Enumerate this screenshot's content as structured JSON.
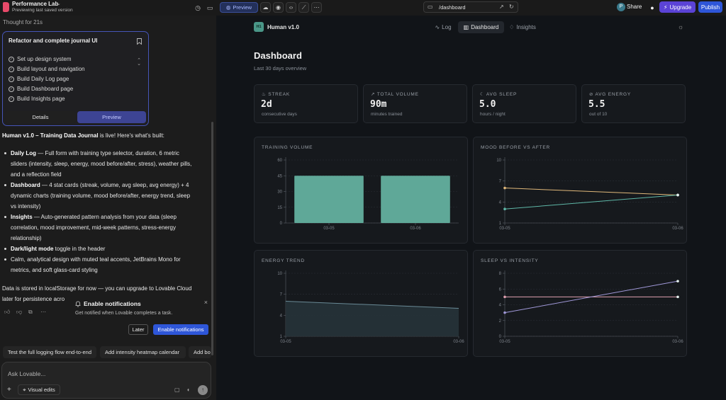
{
  "topbar": {
    "project_name": "Performance Lab",
    "project_status": "Previewing last saved version",
    "preview_label": "Preview",
    "url_path": "/dashboard",
    "share_avatar": "P",
    "share_label": "Share",
    "upgrade_label": "Upgrade",
    "publish_label": "Publish",
    "accent_upgrade": "#5b43d6",
    "accent_publish": "#2e56d8"
  },
  "chat": {
    "thought": "Thought for 21s",
    "plan": {
      "title": "Refactor and complete journal UI",
      "items": [
        "Set up design system",
        "Build layout and navigation",
        "Build Daily Log page",
        "Build Dashboard page",
        "Build Insights page"
      ],
      "details_tab": "Details",
      "preview_tab": "Preview"
    },
    "intro_bold": "Human v1.0 – Training Data Journal",
    "intro_rest": " is live! Here's what's built:",
    "bullets": [
      {
        "bold": "Daily Log",
        "line1": " — Full form with training type selector, duration, 6 metric",
        "line2": "sliders (intensity, sleep, energy, mood before/after, stress), weather pills,",
        "line3": "and a reflection field"
      },
      {
        "bold": "Dashboard",
        "line1": " — 4 stat cards (streak, volume, avg sleep, avg energy) + 4",
        "line2": "dynamic charts (training volume, mood before/after, energy trend, sleep",
        "line3": "vs intensity)"
      },
      {
        "bold": "Insights",
        "line1": " — Auto-generated pattern analysis from your data (sleep",
        "line2": "correlation, mood improvement, mid-week patterns, stress-energy",
        "line3": "relationship)"
      },
      {
        "bold": "Dark/light mode",
        "line1": " toggle in the header"
      },
      {
        "bold": "",
        "line1": "Calm, analytical design with muted teal accents, JetBrains Mono for",
        "line2": "metrics, and soft glass-card styling"
      }
    ],
    "footer_line1": "Data is stored in localStorage for now — you can upgrade to Lovable Cloud",
    "footer_line2": "later for persistence acro",
    "notification": {
      "title": "Enable notifications",
      "description": "Get notified when Lovable completes a task.",
      "later_label": "Later",
      "enable_label": "Enable notifications"
    },
    "suggestions": [
      "Test the full logging flow end-to-end",
      "Add intensity heatmap calendar",
      "Add bo"
    ],
    "composer_placeholder": "Ask Lovable...",
    "visual_edits_label": "Visual edits"
  },
  "app": {
    "logo_text": "H1",
    "name": "Human v1.0",
    "nav": [
      "Log",
      "Dashboard",
      "Insights"
    ],
    "title": "Dashboard",
    "subtitle": "Last 30 days overview",
    "stats": [
      {
        "label": "STREAK",
        "value": "2d",
        "unit": "consecutive days",
        "icon": "flame-icon"
      },
      {
        "label": "TOTAL VOLUME",
        "value": "90m",
        "unit": "minutes trained",
        "icon": "trend-icon"
      },
      {
        "label": "AVG SLEEP",
        "value": "5.0",
        "unit": "hours / night",
        "icon": "moon-icon"
      },
      {
        "label": "AVG ENERGY",
        "value": "5.5",
        "unit": "out of 10",
        "icon": "bolt-icon"
      }
    ],
    "chart_titles": [
      "TRAINING VOLUME",
      "MOOD BEFORE VS AFTER",
      "ENERGY TREND",
      "SLEEP VS INTENSITY"
    ]
  },
  "chart_data": [
    {
      "type": "bar",
      "title": "TRAINING VOLUME",
      "categories": [
        "03-05",
        "03-06"
      ],
      "values": [
        45,
        45
      ],
      "yticks": [
        "0",
        "15",
        "30",
        "45",
        "60"
      ],
      "ylim": [
        0,
        60
      ],
      "color": "#5fa898"
    },
    {
      "type": "line",
      "title": "MOOD BEFORE VS AFTER",
      "x": [
        "03-05",
        "03-06"
      ],
      "series": [
        {
          "values": [
            6,
            5
          ],
          "color": "#e0b87a"
        },
        {
          "values": [
            3,
            5
          ],
          "color": "#5fb8a8"
        }
      ],
      "yticks": [
        "1",
        "4",
        "7",
        "10"
      ],
      "ylim": [
        1,
        10
      ]
    },
    {
      "type": "area",
      "title": "ENERGY TREND",
      "x": [
        "03-05",
        "03-06"
      ],
      "series": [
        {
          "values": [
            6,
            5
          ],
          "color": "#6a8a96"
        }
      ],
      "yticks": [
        "1",
        "4",
        "7",
        "10"
      ],
      "ylim": [
        1,
        10
      ]
    },
    {
      "type": "line",
      "title": "SLEEP VS INTENSITY",
      "x": [
        "03-05",
        "03-06"
      ],
      "series": [
        {
          "values": [
            5,
            5
          ],
          "color": "#e0a0b0"
        },
        {
          "values": [
            3,
            7
          ],
          "color": "#a098d8"
        }
      ],
      "yticks": [
        "0",
        "2",
        "4",
        "6",
        "8"
      ],
      "ylim": [
        0,
        8
      ]
    }
  ]
}
